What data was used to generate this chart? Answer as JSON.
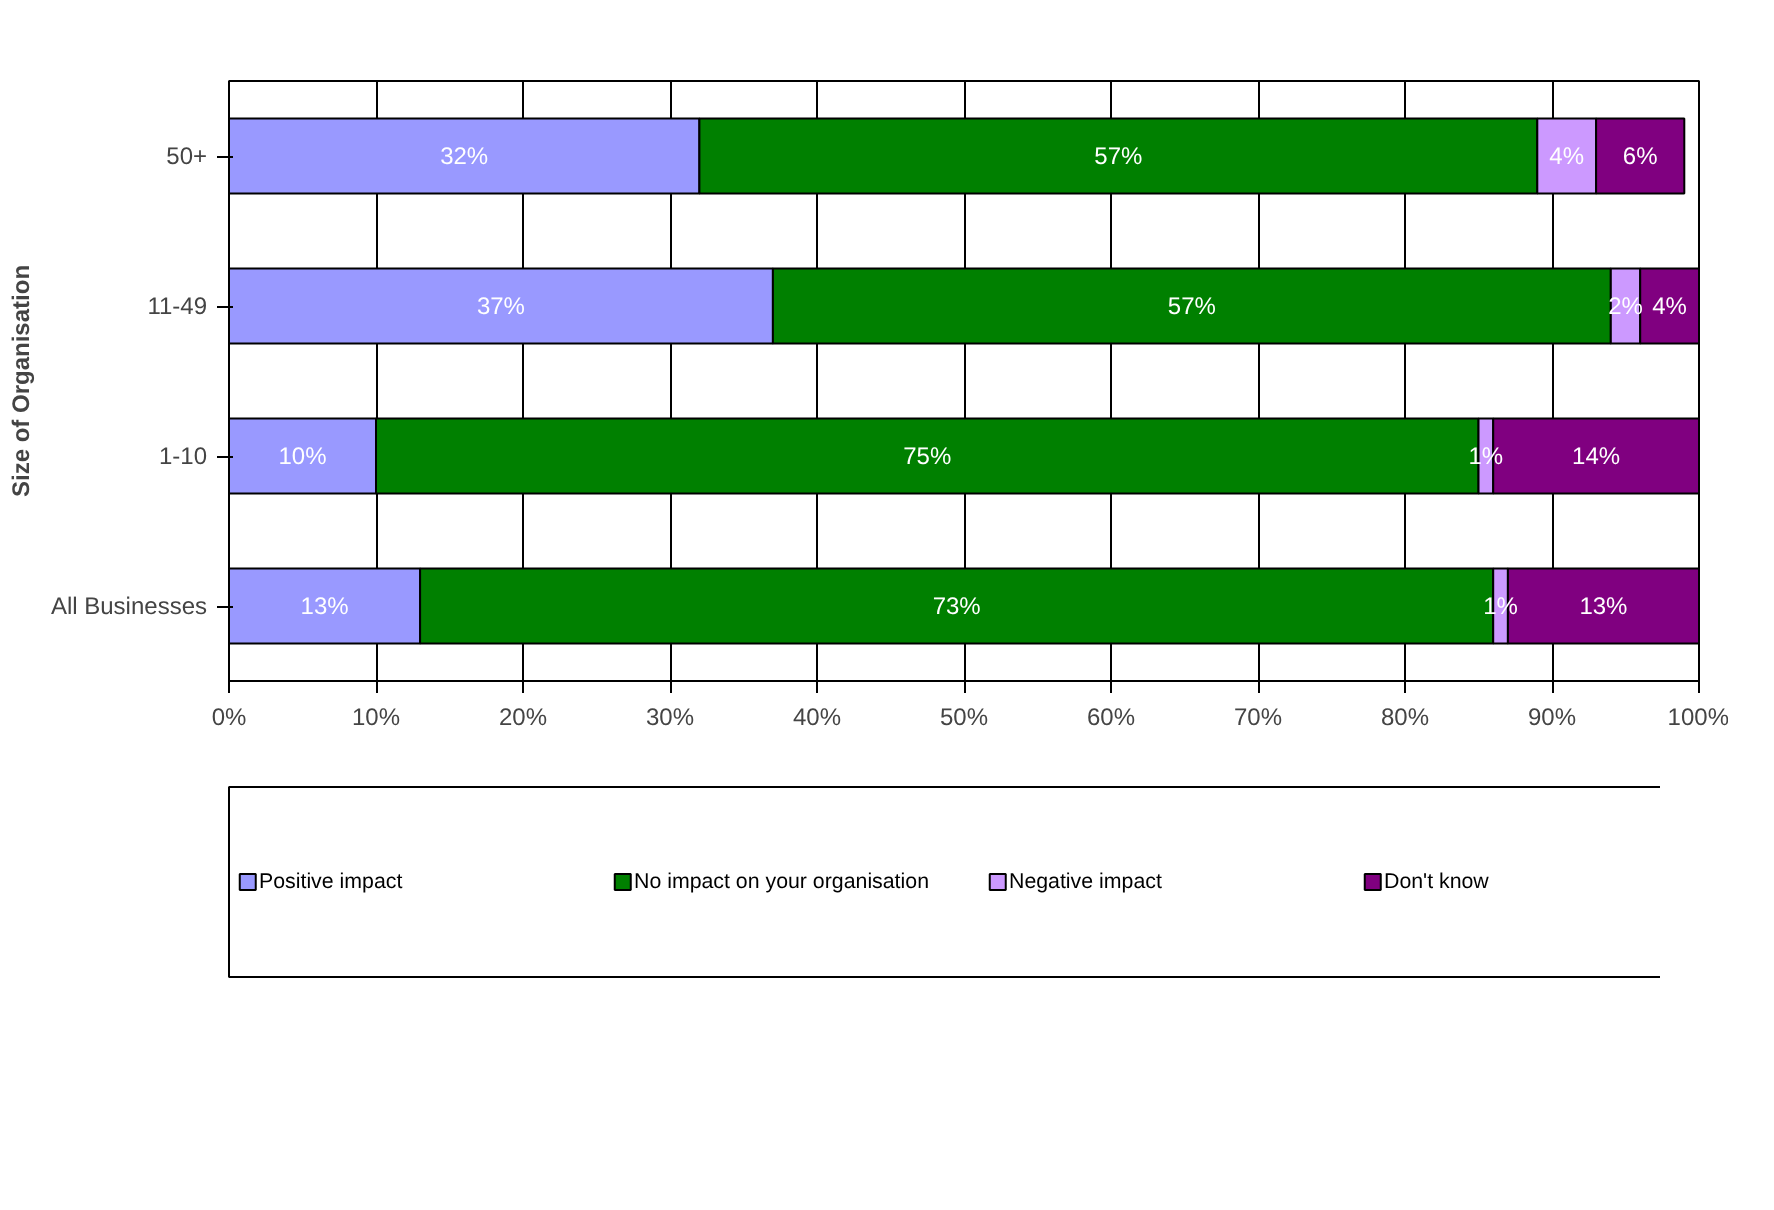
{
  "chart_data": {
    "type": "bar",
    "orientation": "horizontal",
    "stacked": true,
    "ylabel": "Size of Organisation",
    "categories": [
      "50+",
      "11-49",
      "1-10",
      "All Businesses"
    ],
    "series": [
      {
        "name": "Positive impact",
        "color": "#9999ff",
        "values": [
          32,
          37,
          10,
          13
        ],
        "value_labels": [
          "32%",
          "37%",
          "10%",
          "13%"
        ]
      },
      {
        "name": "No impact on your organisation",
        "color": "#008000",
        "values": [
          57,
          57,
          75,
          73
        ],
        "value_labels": [
          "57%",
          "57%",
          "75%",
          "73%"
        ]
      },
      {
        "name": "Negative impact",
        "color": "#cc99ff",
        "values": [
          4,
          2,
          1,
          1
        ],
        "value_labels": [
          "4%",
          "2%",
          "1%",
          "1%"
        ]
      },
      {
        "name": "Don't know",
        "color": "#800080",
        "values": [
          6,
          4,
          14,
          13
        ],
        "value_labels": [
          "6%",
          "4%",
          "14%",
          "13%"
        ]
      }
    ],
    "xlim": [
      0,
      100
    ],
    "xticks": [
      {
        "value": 0,
        "label": "0%"
      },
      {
        "value": 10,
        "label": "10%"
      },
      {
        "value": 20,
        "label": "20%"
      },
      {
        "value": 30,
        "label": "30%"
      },
      {
        "value": 40,
        "label": "40%"
      },
      {
        "value": 50,
        "label": "50%"
      },
      {
        "value": 60,
        "label": "60%"
      },
      {
        "value": 70,
        "label": "70%"
      },
      {
        "value": 80,
        "label": "80%"
      },
      {
        "value": 90,
        "label": "90%"
      },
      {
        "value": 100,
        "label": "100%"
      }
    ],
    "grid": "x",
    "legend": "bottom"
  }
}
